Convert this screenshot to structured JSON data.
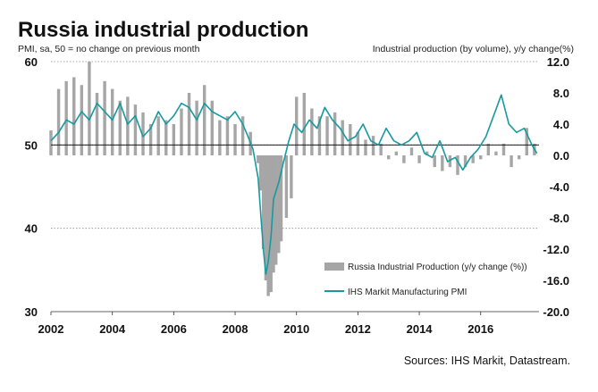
{
  "chart_data": {
    "type": "line",
    "title": "Russia industrial production",
    "left_axis_label": "PMI, sa, 50 = no change on previous month",
    "right_axis_label": "Industrial production (by volume), y/y change(%)",
    "source": "Sources: IHS Markit, Datastream.",
    "x_ticks": [
      "2002",
      "2004",
      "2006",
      "2008",
      "2010",
      "2012",
      "2014",
      "2016"
    ],
    "left_ticks": [
      "60",
      "50",
      "40",
      "30"
    ],
    "right_ticks": [
      "12.0",
      "8.0",
      "4.0",
      "0.0",
      "-4.0",
      "-8.0",
      "-12.0",
      "-16.0",
      "-20.0"
    ],
    "left_range": [
      30,
      60
    ],
    "right_range": [
      -20,
      12
    ],
    "x_range": [
      2002.0,
      2017.9
    ],
    "grid": "dotted horizontal at 60, 50, 40 (left axis)",
    "legend_position": "lower-right",
    "colors": {
      "bars": "#a6a6a6",
      "line": "#169a9f",
      "reference": "#000000"
    },
    "series": [
      {
        "name": "Russia Industrial Production (y/y change (%))",
        "kind": "bar",
        "axis": "right",
        "x": [
          2002.0,
          2002.25,
          2002.5,
          2002.75,
          2003.0,
          2003.25,
          2003.5,
          2003.75,
          2004.0,
          2004.25,
          2004.5,
          2004.75,
          2005.0,
          2005.25,
          2005.5,
          2005.75,
          2006.0,
          2006.25,
          2006.5,
          2006.75,
          2007.0,
          2007.25,
          2007.5,
          2007.75,
          2008.0,
          2008.25,
          2008.5,
          2008.75,
          2008.83,
          2008.92,
          2009.0,
          2009.08,
          2009.17,
          2009.25,
          2009.33,
          2009.42,
          2009.5,
          2009.67,
          2009.83,
          2010.0,
          2010.25,
          2010.5,
          2010.75,
          2011.0,
          2011.25,
          2011.5,
          2011.75,
          2012.0,
          2012.25,
          2012.5,
          2012.75,
          2013.0,
          2013.25,
          2013.5,
          2013.75,
          2014.0,
          2014.25,
          2014.5,
          2014.75,
          2015.0,
          2015.25,
          2015.5,
          2015.75,
          2016.0,
          2016.25,
          2016.5,
          2016.75,
          2017.0,
          2017.25,
          2017.5,
          2017.75
        ],
        "values": [
          3.2,
          8.5,
          9.5,
          10.0,
          9.0,
          12.0,
          8.0,
          9.5,
          8.5,
          7.0,
          7.5,
          6.5,
          5.5,
          4.0,
          5.0,
          4.5,
          4.0,
          6.0,
          8.0,
          7.0,
          9.0,
          7.0,
          4.5,
          5.0,
          4.0,
          5.0,
          3.0,
          -1.0,
          -4.5,
          -12.0,
          -16.0,
          -18.0,
          -17.5,
          -15.0,
          -14.0,
          -12.5,
          -11.0,
          -8.0,
          -5.5,
          7.5,
          8.0,
          6.0,
          5.0,
          5.0,
          5.5,
          4.5,
          4.0,
          3.0,
          2.0,
          2.5,
          1.5,
          -0.5,
          0.5,
          -1.0,
          1.0,
          -1.0,
          0.5,
          -1.5,
          -2.0,
          -1.5,
          -2.5,
          -1.5,
          -1.0,
          -0.5,
          1.5,
          0.5,
          1.5,
          -1.5,
          -0.5,
          3.5,
          1.5
        ]
      },
      {
        "name": "IHS Markit Manufacturing PMI",
        "kind": "line",
        "axis": "left",
        "x": [
          2002.0,
          2002.25,
          2002.5,
          2002.75,
          2003.0,
          2003.25,
          2003.5,
          2003.75,
          2004.0,
          2004.25,
          2004.5,
          2004.75,
          2005.0,
          2005.25,
          2005.5,
          2005.75,
          2006.0,
          2006.25,
          2006.5,
          2006.75,
          2007.0,
          2007.25,
          2007.5,
          2007.75,
          2008.0,
          2008.25,
          2008.42,
          2008.58,
          2008.75,
          2008.83,
          2008.92,
          2009.0,
          2009.08,
          2009.17,
          2009.25,
          2009.42,
          2009.58,
          2009.75,
          2009.92,
          2010.17,
          2010.42,
          2010.67,
          2010.92,
          2011.17,
          2011.42,
          2011.67,
          2011.92,
          2012.17,
          2012.42,
          2012.67,
          2012.92,
          2013.17,
          2013.42,
          2013.67,
          2013.92,
          2014.17,
          2014.42,
          2014.67,
          2014.92,
          2015.17,
          2015.42,
          2015.67,
          2015.92,
          2016.17,
          2016.42,
          2016.67,
          2016.92,
          2017.17,
          2017.42,
          2017.67,
          2017.83
        ],
        "values": [
          50.5,
          51.5,
          53.0,
          52.5,
          54.0,
          53.0,
          55.0,
          54.0,
          53.0,
          55.0,
          52.5,
          53.5,
          51.0,
          52.0,
          54.0,
          52.5,
          53.5,
          55.0,
          54.5,
          53.0,
          55.0,
          54.0,
          53.5,
          53.0,
          54.0,
          52.5,
          51.0,
          49.5,
          46.0,
          42.0,
          37.5,
          34.5,
          36.0,
          39.0,
          43.5,
          45.5,
          48.0,
          50.5,
          52.5,
          51.5,
          53.0,
          52.0,
          54.5,
          53.0,
          52.0,
          50.5,
          51.0,
          52.5,
          50.5,
          50.0,
          52.0,
          50.5,
          50.0,
          50.5,
          51.5,
          49.0,
          48.5,
          50.5,
          48.0,
          48.5,
          47.0,
          48.5,
          49.5,
          51.0,
          53.5,
          56.0,
          52.5,
          51.5,
          52.0,
          50.0,
          49.0
        ]
      }
    ]
  }
}
